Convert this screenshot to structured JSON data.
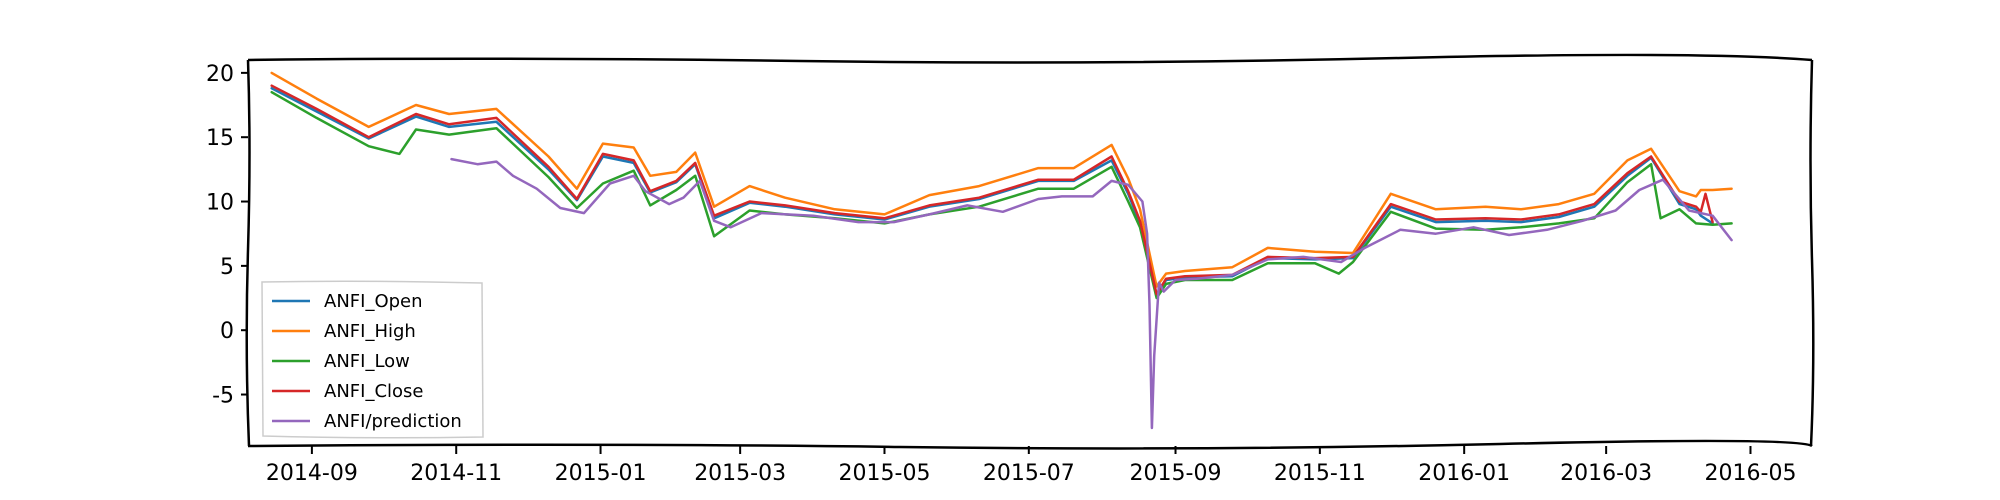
{
  "colors": {
    "ANFI_Open": "#1f77b4",
    "ANFI_High": "#ff7f0e",
    "ANFI_Low": "#2ca02c",
    "ANFI_Close": "#d62728",
    "ANFI/prediction": "#9467bd"
  },
  "chart_data": {
    "type": "line",
    "title": "",
    "xlabel": "",
    "ylabel": "",
    "xlim": [
      "2014-08-05",
      "2016-05-27"
    ],
    "ylim": [
      -9,
      21
    ],
    "grid": false,
    "legend_position": "lower-left",
    "xticks": [
      "2014-09",
      "2014-11",
      "2015-01",
      "2015-03",
      "2015-05",
      "2015-07",
      "2015-09",
      "2015-11",
      "2016-01",
      "2016-03",
      "2016-05"
    ],
    "yticks": [
      "20",
      "15",
      "10",
      "5",
      "0",
      "-5"
    ],
    "series": [
      {
        "name": "ANFI_Open",
        "x": [
          "2014-08-15",
          "2014-09-03",
          "2014-09-25",
          "2014-10-15",
          "2014-10-29",
          "2014-11-18",
          "2014-12-10",
          "2014-12-22",
          "2015-01-02",
          "2015-01-15",
          "2015-01-22",
          "2015-02-02",
          "2015-02-10",
          "2015-02-18",
          "2015-03-05",
          "2015-03-20",
          "2015-04-10",
          "2015-05-01",
          "2015-05-20",
          "2015-06-10",
          "2015-07-05",
          "2015-07-20",
          "2015-08-05",
          "2015-08-12",
          "2015-08-17",
          "2015-08-24",
          "2015-08-28",
          "2015-09-05",
          "2015-09-25",
          "2015-10-10",
          "2015-10-30",
          "2015-11-15",
          "2015-12-01",
          "2015-12-20",
          "2016-01-10",
          "2016-01-25",
          "2016-02-10",
          "2016-02-25",
          "2016-03-10",
          "2016-03-20",
          "2016-04-01",
          "2016-04-08",
          "2016-04-10",
          "2016-04-15"
        ],
        "y": [
          18.8,
          17.0,
          14.9,
          16.6,
          15.8,
          16.2,
          12.5,
          10.1,
          13.5,
          13.0,
          10.7,
          11.5,
          12.9,
          8.7,
          9.9,
          9.6,
          9.0,
          8.6,
          9.6,
          10.2,
          11.6,
          11.6,
          13.2,
          10.6,
          8.3,
          2.7,
          3.9,
          4.1,
          4.2,
          5.6,
          5.5,
          5.6,
          9.6,
          8.4,
          8.5,
          8.4,
          8.8,
          9.6,
          12.0,
          13.4,
          9.8,
          9.4,
          8.9,
          8.3
        ]
      },
      {
        "name": "ANFI_High",
        "x": [
          "2014-08-15",
          "2014-09-03",
          "2014-09-25",
          "2014-10-15",
          "2014-10-29",
          "2014-11-18",
          "2014-12-10",
          "2014-12-22",
          "2015-01-02",
          "2015-01-15",
          "2015-01-22",
          "2015-02-02",
          "2015-02-10",
          "2015-02-18",
          "2015-03-05",
          "2015-03-20",
          "2015-04-10",
          "2015-05-01",
          "2015-05-20",
          "2015-06-10",
          "2015-07-05",
          "2015-07-20",
          "2015-08-05",
          "2015-08-12",
          "2015-08-17",
          "2015-08-24",
          "2015-08-28",
          "2015-09-05",
          "2015-09-25",
          "2015-10-10",
          "2015-10-30",
          "2015-11-15",
          "2015-12-01",
          "2015-12-20",
          "2016-01-10",
          "2016-01-25",
          "2016-02-10",
          "2016-02-25",
          "2016-03-10",
          "2016-03-20",
          "2016-04-01",
          "2016-04-08",
          "2016-04-10",
          "2016-04-15",
          "2016-04-23"
        ],
        "y": [
          20.0,
          18.0,
          15.8,
          17.5,
          16.8,
          17.2,
          13.5,
          11.0,
          14.5,
          14.2,
          12.0,
          12.3,
          13.8,
          9.6,
          11.2,
          10.3,
          9.4,
          9.0,
          10.5,
          11.2,
          12.6,
          12.6,
          14.4,
          11.8,
          9.4,
          3.4,
          4.4,
          4.6,
          4.9,
          6.4,
          6.1,
          6.0,
          10.6,
          9.4,
          9.6,
          9.4,
          9.8,
          10.6,
          13.2,
          14.1,
          10.8,
          10.4,
          10.9,
          10.9,
          11.0
        ]
      },
      {
        "name": "ANFI_Low",
        "x": [
          "2014-08-15",
          "2014-09-03",
          "2014-09-25",
          "2014-10-08",
          "2014-10-15",
          "2014-10-29",
          "2014-11-18",
          "2014-12-10",
          "2014-12-22",
          "2015-01-02",
          "2015-01-15",
          "2015-01-22",
          "2015-02-02",
          "2015-02-10",
          "2015-02-18",
          "2015-03-05",
          "2015-03-20",
          "2015-04-10",
          "2015-05-01",
          "2015-05-20",
          "2015-06-10",
          "2015-07-05",
          "2015-07-20",
          "2015-08-05",
          "2015-08-12",
          "2015-08-17",
          "2015-08-24",
          "2015-08-28",
          "2015-09-05",
          "2015-09-25",
          "2015-10-10",
          "2015-10-30",
          "2015-11-09",
          "2015-11-15",
          "2015-12-01",
          "2015-12-20",
          "2016-01-10",
          "2016-01-25",
          "2016-02-10",
          "2016-02-25",
          "2016-03-10",
          "2016-03-20",
          "2016-03-24",
          "2016-04-01",
          "2016-04-08",
          "2016-04-15",
          "2016-04-23"
        ],
        "y": [
          18.5,
          16.5,
          14.3,
          13.7,
          15.6,
          15.2,
          15.7,
          11.9,
          9.5,
          11.4,
          12.4,
          9.7,
          10.9,
          12.0,
          7.3,
          9.3,
          9.0,
          8.7,
          8.3,
          9.0,
          9.6,
          11.0,
          11.0,
          12.7,
          10.0,
          8.0,
          2.5,
          3.6,
          3.9,
          3.9,
          5.2,
          5.2,
          4.4,
          5.3,
          9.2,
          7.9,
          7.8,
          8.0,
          8.3,
          8.7,
          11.5,
          12.9,
          8.7,
          9.4,
          8.3,
          8.2,
          8.3
        ]
      },
      {
        "name": "ANFI_Close",
        "x": [
          "2014-08-15",
          "2014-09-03",
          "2014-09-25",
          "2014-10-15",
          "2014-10-29",
          "2014-11-18",
          "2014-12-10",
          "2014-12-22",
          "2015-01-02",
          "2015-01-15",
          "2015-01-22",
          "2015-02-02",
          "2015-02-10",
          "2015-02-18",
          "2015-03-05",
          "2015-03-20",
          "2015-04-10",
          "2015-05-01",
          "2015-05-20",
          "2015-06-10",
          "2015-07-05",
          "2015-07-20",
          "2015-08-05",
          "2015-08-12",
          "2015-08-17",
          "2015-08-24",
          "2015-08-28",
          "2015-09-05",
          "2015-09-25",
          "2015-10-10",
          "2015-10-30",
          "2015-11-15",
          "2015-12-01",
          "2015-12-20",
          "2016-01-10",
          "2016-01-25",
          "2016-02-10",
          "2016-02-25",
          "2016-03-10",
          "2016-03-20",
          "2016-04-01",
          "2016-04-08",
          "2016-04-10",
          "2016-04-12",
          "2016-04-15"
        ],
        "y": [
          19.0,
          17.2,
          15.0,
          16.8,
          16.0,
          16.5,
          12.7,
          10.2,
          13.7,
          13.2,
          10.8,
          11.6,
          13.0,
          8.9,
          10.0,
          9.7,
          9.1,
          8.7,
          9.7,
          10.3,
          11.7,
          11.7,
          13.5,
          10.8,
          8.5,
          2.8,
          4.0,
          4.2,
          4.3,
          5.7,
          5.6,
          5.7,
          9.8,
          8.6,
          8.7,
          8.6,
          9.0,
          9.8,
          12.2,
          13.5,
          10.0,
          9.6,
          9.2,
          10.6,
          8.4
        ]
      },
      {
        "name": "ANFI/prediction",
        "x": [
          "2014-10-30",
          "2014-11-10",
          "2014-11-18",
          "2014-11-25",
          "2014-12-05",
          "2014-12-15",
          "2014-12-25",
          "2015-01-05",
          "2015-01-15",
          "2015-01-20",
          "2015-01-30",
          "2015-02-05",
          "2015-02-12",
          "2015-02-18",
          "2015-02-25",
          "2015-03-10",
          "2015-04-01",
          "2015-04-20",
          "2015-05-05",
          "2015-05-20",
          "2015-06-05",
          "2015-06-20",
          "2015-07-05",
          "2015-07-15",
          "2015-07-28",
          "2015-08-05",
          "2015-08-12",
          "2015-08-18",
          "2015-08-20",
          "2015-08-21",
          "2015-08-22",
          "2015-08-23",
          "2015-08-25",
          "2015-08-27",
          "2015-09-01",
          "2015-09-10",
          "2015-09-25",
          "2015-10-10",
          "2015-10-25",
          "2015-11-10",
          "2015-11-20",
          "2015-12-05",
          "2015-12-20",
          "2016-01-05",
          "2016-01-20",
          "2016-02-05",
          "2016-02-20",
          "2016-03-05",
          "2016-03-15",
          "2016-03-25",
          "2016-04-05",
          "2016-04-15",
          "2016-04-23"
        ],
        "y": [
          13.3,
          12.9,
          13.1,
          12.0,
          11.0,
          9.5,
          9.1,
          11.4,
          12.0,
          10.8,
          9.8,
          10.3,
          11.6,
          8.5,
          8.0,
          9.1,
          8.9,
          8.4,
          8.4,
          9.0,
          9.7,
          9.2,
          10.2,
          10.4,
          10.4,
          11.6,
          11.3,
          10.0,
          7.5,
          2.0,
          -7.6,
          -2.0,
          3.7,
          3.0,
          3.9,
          4.0,
          4.3,
          5.5,
          5.7,
          5.3,
          6.4,
          7.8,
          7.5,
          8.0,
          7.4,
          7.8,
          8.5,
          9.3,
          10.9,
          11.7,
          9.3,
          8.9,
          7.0
        ]
      }
    ]
  }
}
